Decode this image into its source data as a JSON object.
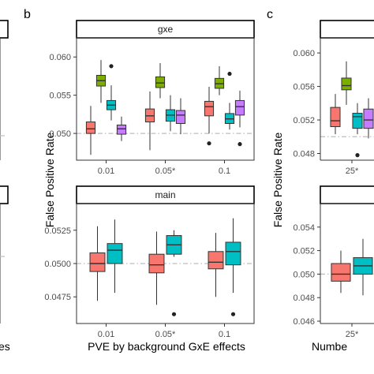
{
  "colors": {
    "red": "#F8766D",
    "green": "#7CAE00",
    "cyan": "#00BFC4",
    "purple": "#C77CFF"
  },
  "labels": {
    "panel_b": "b",
    "panel_c": "c",
    "ylab_b": "False Positive Rate",
    "ylab_c": "False Positive Rate",
    "xlab_b": "PVE by background GxE effects",
    "xlab_c_partial": "Numbe",
    "xlab_a_partial": "es"
  },
  "chart_data": [
    {
      "panel": "b-top",
      "type": "box",
      "strip": "gxe",
      "categories": [
        "0.01",
        "0.05*",
        "0.1"
      ],
      "ylim": [
        0.0465,
        0.0625
      ],
      "yticks": [
        "0.050",
        "0.055",
        "0.060"
      ],
      "reference_line": 0.05,
      "series": [
        {
          "color": "red",
          "boxes": [
            {
              "lo": 0.0472,
              "q1": 0.05,
              "med": 0.0506,
              "q3": 0.0515,
              "hi": 0.0536,
              "out": []
            },
            {
              "lo": 0.0478,
              "q1": 0.0515,
              "med": 0.0523,
              "q3": 0.0532,
              "hi": 0.0555,
              "out": []
            },
            {
              "lo": 0.05,
              "q1": 0.0523,
              "med": 0.0535,
              "q3": 0.0542,
              "hi": 0.0561,
              "out": [
                0.0487
              ]
            }
          ]
        },
        {
          "color": "green",
          "boxes": [
            {
              "lo": 0.054,
              "q1": 0.0562,
              "med": 0.0569,
              "q3": 0.0576,
              "hi": 0.0596,
              "out": []
            },
            {
              "lo": 0.0546,
              "q1": 0.056,
              "med": 0.0566,
              "q3": 0.0574,
              "hi": 0.0592,
              "out": []
            },
            {
              "lo": 0.055,
              "q1": 0.0559,
              "med": 0.0565,
              "q3": 0.0572,
              "hi": 0.0588,
              "out": []
            }
          ]
        },
        {
          "color": "cyan",
          "boxes": [
            {
              "lo": 0.0517,
              "q1": 0.0531,
              "med": 0.0537,
              "q3": 0.0543,
              "hi": 0.0563,
              "out": [
                0.0588
              ]
            },
            {
              "lo": 0.0503,
              "q1": 0.0516,
              "med": 0.0524,
              "q3": 0.0531,
              "hi": 0.055,
              "out": []
            },
            {
              "lo": 0.0505,
              "q1": 0.0513,
              "med": 0.0519,
              "q3": 0.0526,
              "hi": 0.054,
              "out": [
                0.0578
              ]
            }
          ]
        },
        {
          "color": "purple",
          "boxes": [
            {
              "lo": 0.049,
              "q1": 0.0499,
              "med": 0.0506,
              "q3": 0.0511,
              "hi": 0.0522,
              "out": []
            },
            {
              "lo": 0.0499,
              "q1": 0.0513,
              "med": 0.0524,
              "q3": 0.053,
              "hi": 0.0546,
              "out": []
            },
            {
              "lo": 0.0508,
              "q1": 0.0524,
              "med": 0.0535,
              "q3": 0.0543,
              "hi": 0.0556,
              "out": [
                0.0486
              ]
            }
          ]
        }
      ]
    },
    {
      "panel": "b-bottom",
      "type": "box",
      "strip": "main",
      "categories": [
        "0.01",
        "0.05*",
        "0.1"
      ],
      "ylim": [
        0.0455,
        0.0545
      ],
      "yticks": [
        "0.0475",
        "0.0500",
        "0.0525"
      ],
      "reference_line": 0.05,
      "series": [
        {
          "color": "red",
          "boxes": [
            {
              "lo": 0.0472,
              "q1": 0.0494,
              "med": 0.05,
              "q3": 0.0508,
              "hi": 0.0528,
              "out": []
            },
            {
              "lo": 0.0469,
              "q1": 0.0493,
              "med": 0.0499,
              "q3": 0.0507,
              "hi": 0.0524,
              "out": []
            },
            {
              "lo": 0.0475,
              "q1": 0.0496,
              "med": 0.0501,
              "q3": 0.0509,
              "hi": 0.0523,
              "out": []
            }
          ]
        },
        {
          "color": "cyan",
          "boxes": [
            {
              "lo": 0.0478,
              "q1": 0.05,
              "med": 0.051,
              "q3": 0.0515,
              "hi": 0.0533,
              "out": []
            },
            {
              "lo": 0.0505,
              "q1": 0.0507,
              "med": 0.0514,
              "q3": 0.0521,
              "hi": 0.0525,
              "out": [
                0.0462
              ]
            },
            {
              "lo": 0.0478,
              "q1": 0.0499,
              "med": 0.0509,
              "q3": 0.0516,
              "hi": 0.0534,
              "out": [
                0.0462
              ]
            }
          ]
        }
      ]
    },
    {
      "panel": "c-top",
      "type": "box",
      "strip": "",
      "categories": [
        "25*"
      ],
      "ylim": [
        0.0472,
        0.0618
      ],
      "yticks": [
        "0.048",
        "0.052",
        "0.056",
        "0.060"
      ],
      "reference_line": 0.05,
      "series": [
        {
          "color": "red",
          "boxes": [
            {
              "lo": 0.0503,
              "q1": 0.0512,
              "med": 0.0519,
              "q3": 0.0535,
              "hi": 0.0551,
              "out": []
            }
          ]
        },
        {
          "color": "green",
          "boxes": [
            {
              "lo": 0.0538,
              "q1": 0.0556,
              "med": 0.0561,
              "q3": 0.057,
              "hi": 0.059,
              "out": []
            }
          ]
        },
        {
          "color": "cyan",
          "boxes": [
            {
              "lo": 0.0503,
              "q1": 0.051,
              "med": 0.0524,
              "q3": 0.0528,
              "hi": 0.054,
              "out": [
                0.0478
              ]
            }
          ]
        },
        {
          "color": "purple",
          "boxes": [
            {
              "lo": 0.0498,
              "q1": 0.051,
              "med": 0.052,
              "q3": 0.0533,
              "hi": 0.0546,
              "out": []
            }
          ]
        }
      ]
    },
    {
      "panel": "c-bottom",
      "type": "box",
      "strip": "",
      "categories": [
        "25*"
      ],
      "ylim": [
        0.0458,
        0.056
      ],
      "yticks": [
        "0.046",
        "0.048",
        "0.050",
        "0.052",
        "0.054"
      ],
      "reference_line": 0.05,
      "series": [
        {
          "color": "red",
          "boxes": [
            {
              "lo": 0.0484,
              "q1": 0.0494,
              "med": 0.05,
              "q3": 0.0509,
              "hi": 0.052,
              "out": []
            }
          ]
        },
        {
          "color": "cyan",
          "boxes": [
            {
              "lo": 0.0482,
              "q1": 0.05,
              "med": 0.0507,
              "q3": 0.0514,
              "hi": 0.053,
              "out": []
            }
          ]
        }
      ]
    }
  ]
}
